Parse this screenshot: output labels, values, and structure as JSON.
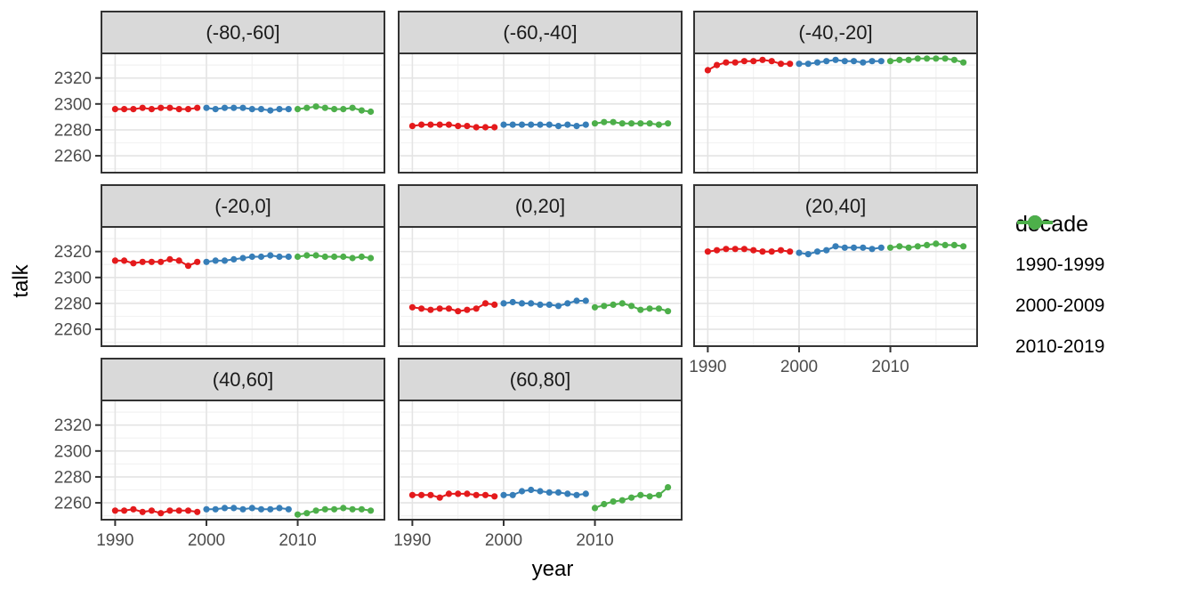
{
  "chart_data": {
    "type": "scatter",
    "title": "",
    "xlabel": "year",
    "ylabel": "talk",
    "grid": true,
    "legend_position": "right",
    "xlim": [
      1988.5,
      2019.5
    ],
    "ylim": [
      2247,
      2339
    ],
    "x_ticks": [
      1990,
      2000,
      2010
    ],
    "y_ticks": [
      2260,
      2280,
      2300,
      2320
    ],
    "x_minor": [
      1995,
      2005,
      2015
    ],
    "y_minor": [
      2250,
      2270,
      2290,
      2310,
      2330
    ],
    "series_years": {
      "1990-1999": [
        1990,
        1991,
        1992,
        1993,
        1994,
        1995,
        1996,
        1997,
        1998,
        1999
      ],
      "2000-2009": [
        2000,
        2001,
        2002,
        2003,
        2004,
        2005,
        2006,
        2007,
        2008,
        2009
      ],
      "2010-2019": [
        2010,
        2011,
        2012,
        2013,
        2014,
        2015,
        2016,
        2017,
        2018
      ]
    },
    "facets": [
      {
        "label": "(-80,-60]",
        "series": {
          "1990-1999": [
            2296,
            2296,
            2296,
            2297,
            2296,
            2297,
            2297,
            2296,
            2296,
            2297
          ],
          "2000-2009": [
            2297,
            2296,
            2297,
            2297,
            2297,
            2296,
            2296,
            2295,
            2296,
            2296
          ],
          "2010-2019": [
            2296,
            2297,
            2298,
            2297,
            2296,
            2296,
            2297,
            2295,
            2294
          ]
        }
      },
      {
        "label": "(-60,-40]",
        "series": {
          "1990-1999": [
            2283,
            2284,
            2284,
            2284,
            2284,
            2283,
            2283,
            2282,
            2282,
            2282
          ],
          "2000-2009": [
            2284,
            2284,
            2284,
            2284,
            2284,
            2284,
            2283,
            2284,
            2283,
            2284
          ],
          "2010-2019": [
            2285,
            2286,
            2286,
            2285,
            2285,
            2285,
            2285,
            2284,
            2285
          ]
        }
      },
      {
        "label": "(-40,-20]",
        "series": {
          "1990-1999": [
            2326,
            2330,
            2332,
            2332,
            2333,
            2333,
            2334,
            2333,
            2331,
            2331
          ],
          "2000-2009": [
            2331,
            2331,
            2332,
            2333,
            2334,
            2333,
            2333,
            2332,
            2333,
            2333
          ],
          "2010-2019": [
            2333,
            2334,
            2334,
            2335,
            2335,
            2335,
            2335,
            2334,
            2332
          ]
        }
      },
      {
        "label": "(-20,0]",
        "series": {
          "1990-1999": [
            2313,
            2313,
            2311,
            2312,
            2312,
            2312,
            2314,
            2313,
            2309,
            2312
          ],
          "2000-2009": [
            2312,
            2313,
            2313,
            2314,
            2315,
            2316,
            2316,
            2317,
            2316,
            2316
          ],
          "2010-2019": [
            2316,
            2317,
            2317,
            2316,
            2316,
            2316,
            2315,
            2316,
            2315
          ]
        }
      },
      {
        "label": "(0,20]",
        "series": {
          "1990-1999": [
            2277,
            2276,
            2275,
            2276,
            2276,
            2274,
            2275,
            2276,
            2280,
            2279
          ],
          "2000-2009": [
            2280,
            2281,
            2280,
            2280,
            2279,
            2279,
            2278,
            2280,
            2282,
            2282
          ],
          "2010-2019": [
            2277,
            2278,
            2279,
            2280,
            2278,
            2275,
            2276,
            2276,
            2274
          ]
        }
      },
      {
        "label": "(20,40]",
        "series": {
          "1990-1999": [
            2320,
            2321,
            2322,
            2322,
            2322,
            2321,
            2320,
            2320,
            2321,
            2320
          ],
          "2000-2009": [
            2319,
            2318,
            2320,
            2321,
            2324,
            2323,
            2323,
            2323,
            2322,
            2323
          ],
          "2010-2019": [
            2323,
            2324,
            2323,
            2324,
            2325,
            2326,
            2325,
            2325,
            2324
          ]
        }
      },
      {
        "label": "(40,60]",
        "series": {
          "1990-1999": [
            2254,
            2254,
            2255,
            2253,
            2254,
            2252,
            2254,
            2254,
            2254,
            2253
          ],
          "2000-2009": [
            2255,
            2255,
            2256,
            2256,
            2255,
            2256,
            2255,
            2255,
            2256,
            2255
          ],
          "2010-2019": [
            2251,
            2252,
            2254,
            2255,
            2255,
            2256,
            2255,
            2255,
            2254
          ]
        }
      },
      {
        "label": "(60,80]",
        "series": {
          "1990-1999": [
            2266,
            2266,
            2266,
            2264,
            2267,
            2267,
            2267,
            2266,
            2266,
            2265
          ],
          "2000-2009": [
            2266,
            2266,
            2269,
            2270,
            2269,
            2268,
            2268,
            2267,
            2266,
            2267
          ],
          "2010-2019": [
            2256,
            2259,
            2261,
            2262,
            2264,
            2266,
            2265,
            2266,
            2272
          ]
        }
      }
    ],
    "legend": {
      "title": "decade",
      "entries": [
        {
          "label": "1990-1999",
          "color": "#E41A1C"
        },
        {
          "label": "2000-2009",
          "color": "#377EB8"
        },
        {
          "label": "2010-2019",
          "color": "#4DAF4A"
        }
      ]
    },
    "theme_colors": {
      "strip_fill": "#D9D9D9",
      "panel_border": "#333333",
      "grid_major": "#E4E4E4",
      "grid_minor": "#F2F2F2",
      "tick_label": "#4D4D4D",
      "strip_text": "#1A1A1A"
    }
  }
}
